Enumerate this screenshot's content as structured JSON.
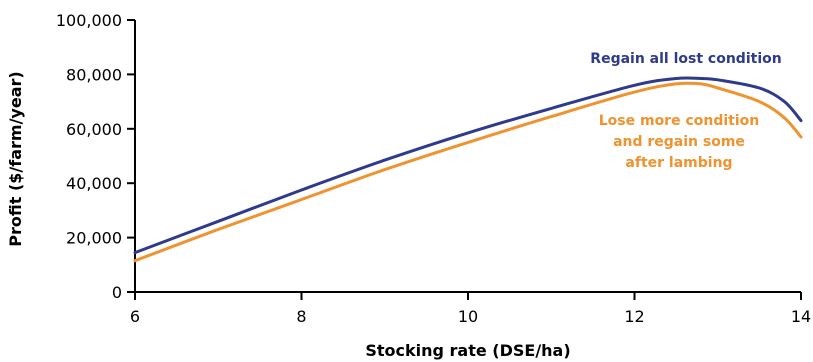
{
  "chart_data": {
    "type": "line",
    "title": "",
    "xlabel": "Stocking rate (DSE/ha)",
    "ylabel": "Profit ($/farm/year)",
    "xlim": [
      6,
      14
    ],
    "ylim": [
      0,
      100000
    ],
    "x_ticks": [
      6,
      8,
      10,
      12,
      14
    ],
    "x_tick_labels": [
      "6",
      "8",
      "10",
      "12",
      "14"
    ],
    "y_ticks": [
      0,
      20000,
      40000,
      60000,
      80000,
      100000
    ],
    "y_tick_labels": [
      "0",
      "20,000",
      "40,000",
      "60,000",
      "80,000",
      "100,000"
    ],
    "grid": false,
    "series": [
      {
        "name": "Regain all lost condition",
        "color": "#2e3a8c",
        "x": [
          6,
          7,
          8,
          9,
          10,
          11,
          12,
          12.5,
          12.8,
          13,
          13.5,
          13.8,
          14
        ],
        "y": [
          14500,
          26000,
          37500,
          48500,
          58500,
          67500,
          76000,
          78500,
          78500,
          78000,
          75000,
          70000,
          63000
        ]
      },
      {
        "name": "Lose more condition and regain some after lambing",
        "color": "#f0922e",
        "label_lines": [
          "Lose more condition",
          "and regain some",
          "after lambing"
        ],
        "x": [
          6,
          7,
          8,
          9,
          10,
          11,
          12,
          12.5,
          12.8,
          13,
          13.5,
          13.8,
          14
        ],
        "y": [
          11500,
          23000,
          34000,
          45000,
          55000,
          64500,
          73500,
          76500,
          76500,
          75000,
          70000,
          64000,
          57000
        ]
      }
    ]
  }
}
